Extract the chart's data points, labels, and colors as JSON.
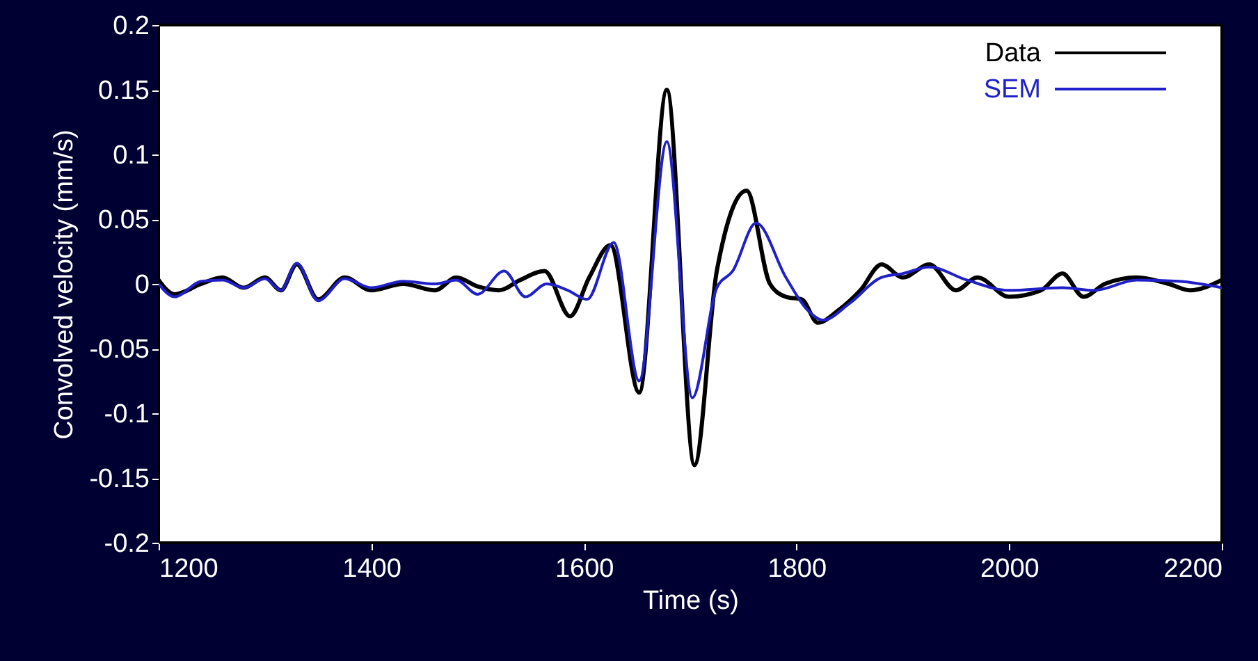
{
  "chart_data": {
    "type": "line",
    "xlabel": "Time (s)",
    "ylabel": "Convolved velocity (mm/s)",
    "xlim": [
      1200,
      2200
    ],
    "xticks": [
      1200,
      1400,
      1600,
      1800,
      2000,
      2200
    ],
    "ylim": [
      -0.2,
      0.2
    ],
    "yticks": [
      -0.2,
      -0.15,
      -0.1,
      -0.05,
      0,
      0.05,
      0.1,
      0.15,
      0.2
    ],
    "grid": false,
    "legend": "top right",
    "marker": "none",
    "line_style": "solid",
    "series": [
      {
        "name": "Data",
        "color": "#000000",
        "x": [
          1200,
          1215,
          1240,
          1260,
          1280,
          1300,
          1315,
          1330,
          1350,
          1375,
          1400,
          1430,
          1460,
          1480,
          1500,
          1520,
          1540,
          1563,
          1587,
          1605,
          1625,
          1652,
          1678,
          1704,
          1725,
          1753,
          1775,
          1790,
          1805,
          1820,
          1840,
          1860,
          1880,
          1900,
          1925,
          1950,
          1970,
          2000,
          2030,
          2050,
          2070,
          2090,
          2120,
          2150,
          2170,
          2200
        ],
        "values": [
          0.003,
          -0.008,
          0.0,
          0.005,
          -0.003,
          0.005,
          -0.005,
          0.015,
          -0.012,
          0.005,
          -0.005,
          0.0,
          -0.005,
          0.005,
          -0.002,
          -0.005,
          0.003,
          0.01,
          -0.025,
          0.005,
          0.03,
          -0.084,
          0.15,
          -0.14,
          0.01,
          0.072,
          0.0,
          -0.01,
          -0.012,
          -0.03,
          -0.02,
          -0.005,
          0.015,
          0.005,
          0.015,
          -0.005,
          0.005,
          -0.01,
          -0.005,
          0.008,
          -0.01,
          0.0,
          0.005,
          0.0,
          -0.005,
          0.003
        ]
      },
      {
        "name": "SEM",
        "color": "#2020c8",
        "x": [
          1200,
          1215,
          1240,
          1260,
          1280,
          1300,
          1315,
          1330,
          1350,
          1375,
          1400,
          1430,
          1460,
          1480,
          1500,
          1525,
          1545,
          1565,
          1585,
          1603,
          1628,
          1652,
          1678,
          1702,
          1725,
          1740,
          1762,
          1790,
          1810,
          1825,
          1850,
          1880,
          1900,
          1925,
          1960,
          2000,
          2050,
          2080,
          2120,
          2160,
          2200
        ],
        "values": [
          0.0,
          -0.01,
          0.002,
          0.003,
          -0.003,
          0.004,
          -0.005,
          0.016,
          -0.013,
          0.004,
          -0.003,
          0.002,
          0.0,
          0.003,
          -0.008,
          0.01,
          -0.01,
          0.0,
          -0.005,
          -0.012,
          0.032,
          -0.075,
          0.11,
          -0.088,
          -0.003,
          0.01,
          0.047,
          0.005,
          -0.02,
          -0.028,
          -0.015,
          0.005,
          0.008,
          0.013,
          0.003,
          -0.005,
          -0.003,
          -0.005,
          0.003,
          0.002,
          -0.003
        ]
      }
    ]
  }
}
